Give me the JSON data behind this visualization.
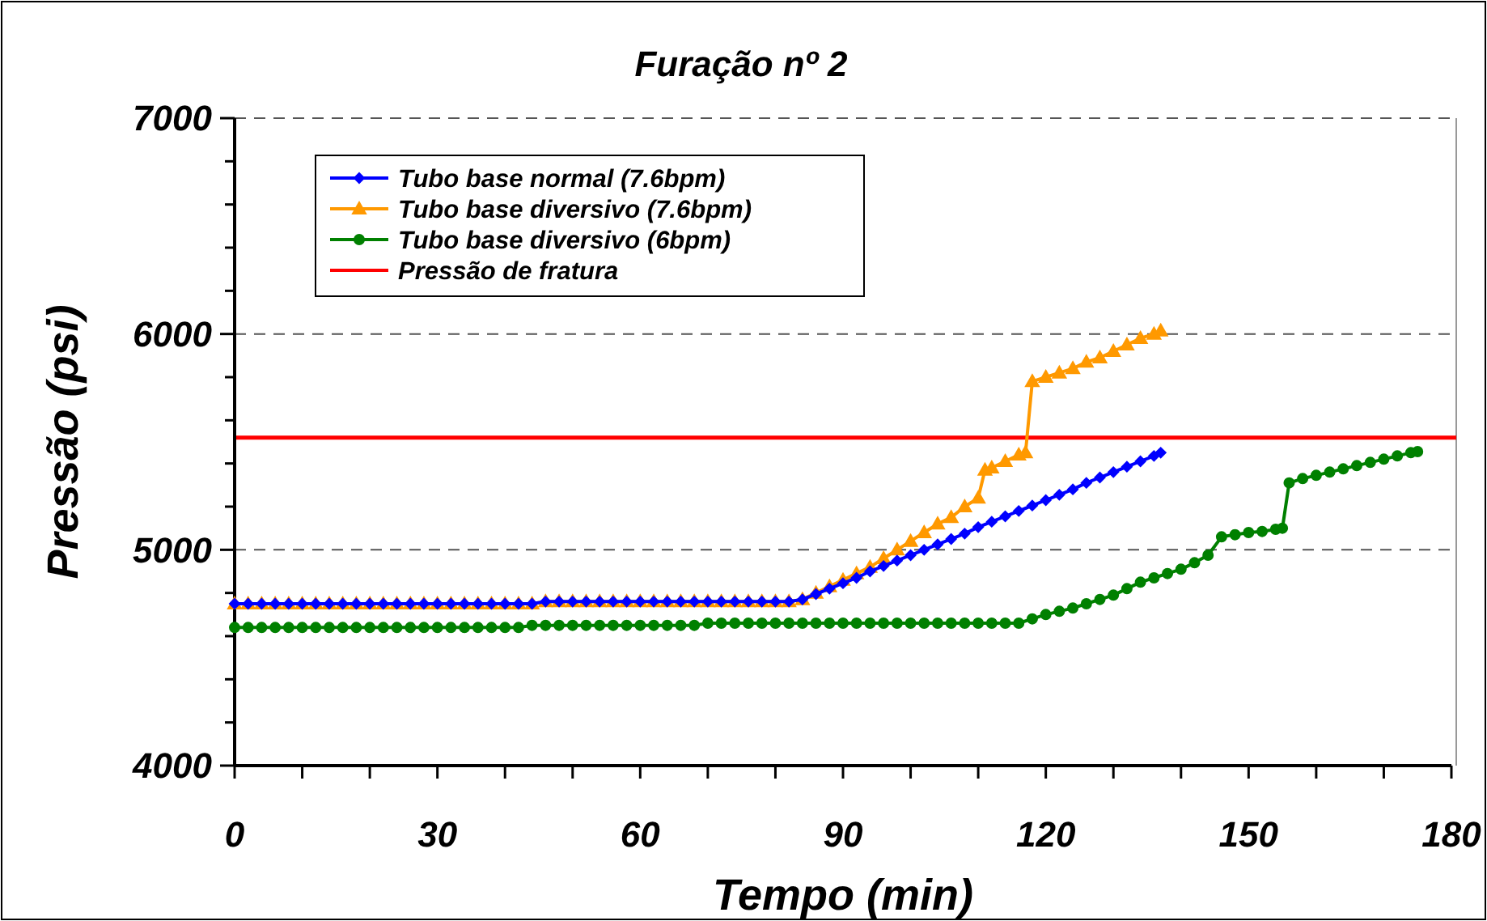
{
  "chart_data": {
    "type": "line",
    "title": "Furação nº 2",
    "xlabel": "Tempo (min)",
    "ylabel": "Pressão (psi)",
    "xlim": [
      0,
      180
    ],
    "xticks": [
      0,
      {
        "value": 10,
        "label": null
      },
      {
        "value": 20,
        "label": null
      },
      30,
      {
        "value": 40,
        "label": null
      },
      {
        "value": 50,
        "label": null
      },
      60,
      {
        "value": 70,
        "label": null
      },
      {
        "value": 80,
        "label": null
      },
      90,
      {
        "value": 100,
        "label": null
      },
      {
        "value": 110,
        "label": null
      },
      120,
      {
        "value": 130,
        "label": null
      },
      {
        "value": 140,
        "label": null
      },
      150,
      {
        "value": 160,
        "label": null
      },
      {
        "value": 170,
        "label": null
      },
      180
    ],
    "ylim": [
      4000,
      7000
    ],
    "yticks": [
      4000,
      {
        "value": 4200,
        "label": null
      },
      {
        "value": 4400,
        "label": null
      },
      {
        "value": 4600,
        "label": null
      },
      {
        "value": 4800,
        "label": null
      },
      5000,
      {
        "value": 5200,
        "label": null
      },
      {
        "value": 5400,
        "label": null
      },
      {
        "value": 5600,
        "label": null
      },
      {
        "value": 5800,
        "label": null
      },
      6000,
      {
        "value": 6200,
        "label": null
      },
      {
        "value": 6400,
        "label": null
      },
      {
        "value": 6600,
        "label": null
      },
      {
        "value": 6800,
        "label": null
      },
      7000
    ],
    "grid": "y",
    "legend": "top left",
    "line_style": "solid",
    "ref_lines": [
      {
        "axis": "y",
        "value": 5520,
        "label": "Pressão de fratura",
        "color": "#ff0000"
      }
    ],
    "series": [
      {
        "name": "Tubo base normal (7.6bpm)",
        "color": "#0000ff",
        "marker": "diamond",
        "x": [
          0,
          2,
          4,
          6,
          8,
          10,
          12,
          14,
          16,
          18,
          20,
          22,
          24,
          26,
          28,
          30,
          32,
          34,
          36,
          38,
          40,
          42,
          44,
          46,
          48,
          50,
          52,
          54,
          56,
          58,
          60,
          62,
          64,
          66,
          68,
          70,
          72,
          74,
          76,
          78,
          80,
          82,
          84,
          86,
          88,
          90,
          92,
          94,
          96,
          98,
          100,
          102,
          104,
          106,
          108,
          110,
          112,
          114,
          116,
          118,
          120,
          122,
          124,
          126,
          128,
          130,
          132,
          134,
          136,
          137
        ],
        "values": [
          4750,
          4750,
          4750,
          4750,
          4750,
          4750,
          4750,
          4750,
          4750,
          4750,
          4750,
          4750,
          4750,
          4750,
          4750,
          4750,
          4750,
          4750,
          4750,
          4750,
          4750,
          4750,
          4750,
          4760,
          4760,
          4760,
          4760,
          4760,
          4760,
          4760,
          4760,
          4760,
          4760,
          4760,
          4760,
          4760,
          4760,
          4760,
          4760,
          4760,
          4760,
          4760,
          4770,
          4795,
          4820,
          4845,
          4870,
          4900,
          4925,
          4950,
          4975,
          5000,
          5025,
          5050,
          5075,
          5105,
          5130,
          5155,
          5180,
          5205,
          5230,
          5255,
          5280,
          5310,
          5335,
          5360,
          5385,
          5410,
          5435,
          5450
        ]
      },
      {
        "name": "Tubo base diversivo (7.6bpm)",
        "color": "#ff9900",
        "marker": "triangle",
        "x": [
          0,
          2,
          4,
          6,
          8,
          10,
          12,
          14,
          16,
          18,
          20,
          22,
          24,
          26,
          28,
          30,
          32,
          34,
          36,
          38,
          40,
          42,
          44,
          46,
          48,
          50,
          52,
          54,
          56,
          58,
          60,
          62,
          64,
          66,
          68,
          70,
          72,
          74,
          76,
          78,
          80,
          82,
          84,
          86,
          88,
          90,
          92,
          94,
          96,
          98,
          100,
          102,
          104,
          106,
          108,
          110,
          111,
          112,
          114,
          116,
          117,
          118,
          120,
          122,
          124,
          126,
          128,
          130,
          132,
          134,
          136,
          137
        ],
        "values": [
          4750,
          4750,
          4750,
          4750,
          4750,
          4750,
          4750,
          4750,
          4750,
          4750,
          4750,
          4750,
          4750,
          4750,
          4750,
          4750,
          4750,
          4750,
          4750,
          4750,
          4750,
          4750,
          4750,
          4760,
          4760,
          4760,
          4760,
          4760,
          4760,
          4760,
          4760,
          4760,
          4760,
          4760,
          4760,
          4760,
          4760,
          4760,
          4760,
          4760,
          4760,
          4760,
          4770,
          4800,
          4830,
          4860,
          4890,
          4920,
          4960,
          5000,
          5040,
          5080,
          5120,
          5150,
          5200,
          5240,
          5370,
          5380,
          5410,
          5440,
          5450,
          5780,
          5800,
          5820,
          5840,
          5870,
          5890,
          5920,
          5950,
          5980,
          6000,
          6015
        ]
      },
      {
        "name": "Tubo base diversivo (6bpm)",
        "color": "#008000",
        "marker": "circle",
        "x": [
          0,
          2,
          4,
          6,
          8,
          10,
          12,
          14,
          16,
          18,
          20,
          22,
          24,
          26,
          28,
          30,
          32,
          34,
          36,
          38,
          40,
          42,
          44,
          46,
          48,
          50,
          52,
          54,
          56,
          58,
          60,
          62,
          64,
          66,
          68,
          70,
          72,
          74,
          76,
          78,
          80,
          82,
          84,
          86,
          88,
          90,
          92,
          94,
          96,
          98,
          100,
          102,
          104,
          106,
          108,
          110,
          112,
          114,
          116,
          118,
          120,
          122,
          124,
          126,
          128,
          130,
          132,
          134,
          136,
          138,
          140,
          142,
          144,
          146,
          148,
          150,
          152,
          154,
          155,
          156,
          158,
          160,
          162,
          164,
          166,
          168,
          170,
          172,
          174,
          175
        ],
        "values": [
          4640,
          4640,
          4640,
          4640,
          4640,
          4640,
          4640,
          4640,
          4640,
          4640,
          4640,
          4640,
          4640,
          4640,
          4640,
          4640,
          4640,
          4640,
          4640,
          4640,
          4640,
          4640,
          4650,
          4650,
          4650,
          4650,
          4650,
          4650,
          4650,
          4650,
          4650,
          4650,
          4650,
          4650,
          4650,
          4660,
          4660,
          4660,
          4660,
          4660,
          4660,
          4660,
          4660,
          4660,
          4660,
          4660,
          4660,
          4660,
          4660,
          4660,
          4660,
          4660,
          4660,
          4660,
          4660,
          4660,
          4660,
          4660,
          4660,
          4680,
          4700,
          4715,
          4730,
          4750,
          4770,
          4790,
          4820,
          4850,
          4870,
          4890,
          4910,
          4940,
          4975,
          5060,
          5070,
          5080,
          5085,
          5095,
          5100,
          5310,
          5330,
          5345,
          5360,
          5375,
          5390,
          5405,
          5420,
          5435,
          5450,
          5455
        ]
      }
    ]
  }
}
